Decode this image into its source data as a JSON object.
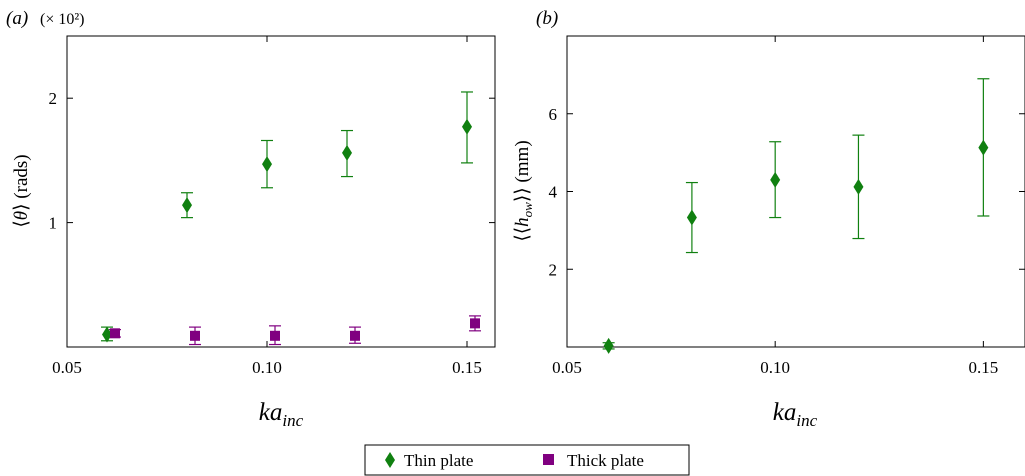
{
  "panel_a_label": "(a)",
  "panel_b_label": "(b)",
  "legend": {
    "thin": "Thin plate",
    "thick": "Thick plate"
  },
  "colors": {
    "thin": "#108010",
    "thick": "#800080"
  },
  "chart_data": [
    {
      "type": "scatter",
      "panel": "(a)",
      "xlabel": "ka_inc",
      "ylabel": "⟨θ⟩ (rads)",
      "y_multiplier": "(× 10²)",
      "xlim": [
        0.05,
        0.157
      ],
      "ylim": [
        0,
        2.5
      ],
      "xticks": [
        0.05,
        0.1,
        0.15
      ],
      "xtick_labels": [
        "0.05",
        "0.10",
        "0.15"
      ],
      "yticks": [
        1,
        2
      ],
      "ytick_labels": [
        "1",
        "2"
      ],
      "grid": false,
      "series": [
        {
          "name": "Thin plate",
          "marker": "diamond",
          "color": "#108010",
          "x": [
            0.06,
            0.08,
            0.1,
            0.12,
            0.15
          ],
          "y": [
            0.1,
            1.14,
            1.47,
            1.56,
            1.77
          ],
          "yerr_low": [
            0.05,
            0.1,
            0.19,
            0.19,
            0.29
          ],
          "yerr_high": [
            0.06,
            0.1,
            0.19,
            0.18,
            0.28
          ]
        },
        {
          "name": "Thick plate",
          "marker": "square",
          "color": "#800080",
          "x": [
            0.062,
            0.082,
            0.102,
            0.122,
            0.152
          ],
          "y": [
            0.11,
            0.09,
            0.09,
            0.09,
            0.19
          ],
          "yerr_low": [
            0.03,
            0.07,
            0.07,
            0.06,
            0.06
          ],
          "yerr_high": [
            0.03,
            0.07,
            0.08,
            0.07,
            0.06
          ]
        }
      ]
    },
    {
      "type": "scatter",
      "panel": "(b)",
      "xlabel": "ka_inc",
      "ylabel": "⟨⟨h_ow⟩⟩ (mm)",
      "xlim": [
        0.05,
        0.16
      ],
      "ylim": [
        0,
        8
      ],
      "xticks": [
        0.05,
        0.1,
        0.15
      ],
      "xtick_labels": [
        "0.05",
        "0.10",
        "0.15"
      ],
      "yticks": [
        2,
        4,
        6
      ],
      "ytick_labels": [
        "2",
        "4",
        "6"
      ],
      "grid": false,
      "series": [
        {
          "name": "Thin plate",
          "marker": "diamond",
          "color": "#108010",
          "x": [
            0.06,
            0.08,
            0.1,
            0.12,
            0.15
          ],
          "y": [
            0.03,
            3.33,
            4.3,
            4.12,
            5.13
          ],
          "yerr_low": [
            0.08,
            0.9,
            0.97,
            1.33,
            1.76
          ],
          "yerr_high": [
            0.08,
            0.9,
            0.98,
            1.33,
            1.77
          ]
        }
      ]
    }
  ]
}
